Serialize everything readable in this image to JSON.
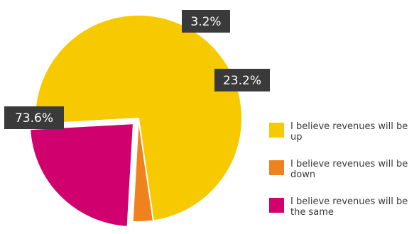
{
  "chart_data": {
    "type": "pie",
    "title": "",
    "slices": [
      {
        "label": "I believe revenues will be up",
        "value": 73.6,
        "display": "73.6%",
        "color": "#F7C900"
      },
      {
        "label": "I believe revenues will be down",
        "value": 3.2,
        "display": "3.2%",
        "color": "#F0821E"
      },
      {
        "label": "I believe revenues will be the same",
        "value": 23.2,
        "display": "23.2%",
        "color": "#D0006F"
      }
    ],
    "data_label_background": "#3a3a3a",
    "data_label_color": "#ffffff",
    "legend_position": "right"
  }
}
